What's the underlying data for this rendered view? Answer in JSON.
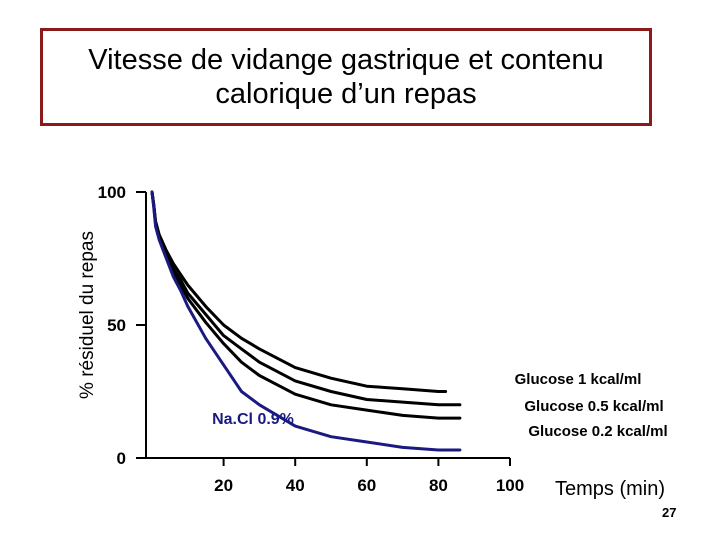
{
  "slide": {
    "title_line1": "Vitesse de vidange gastrique et contenu",
    "title_line2": "calorique d’un repas",
    "page_number": "27"
  },
  "chart_data": {
    "type": "line",
    "ylabel": "% résiduel du repas",
    "xlabel": "Temps (min)",
    "xlim": [
      0,
      100
    ],
    "ylim": [
      0,
      100
    ],
    "x_ticks": [
      "20",
      "40",
      "60",
      "80",
      "100"
    ],
    "y_ticks": [
      "0",
      "50",
      "100"
    ],
    "x_tick_values": [
      20,
      40,
      60,
      80,
      100
    ],
    "y_tick_values": [
      0,
      50,
      100
    ],
    "grid": false,
    "series": [
      {
        "name": "Glucose 1 kcal/ml",
        "color": "#000000",
        "x": [
          0,
          0.5,
          1,
          2,
          4,
          6,
          8,
          10,
          15,
          20,
          25,
          30,
          40,
          50,
          60,
          70,
          80,
          82
        ],
        "values": [
          100,
          95,
          89,
          84,
          78,
          73,
          69,
          65,
          57,
          50,
          45,
          41,
          34,
          30,
          27,
          26,
          25,
          25
        ]
      },
      {
        "name": "Glucose 0.5 kcal/ml",
        "color": "#000000",
        "x": [
          0,
          0.5,
          1,
          2,
          4,
          6,
          8,
          10,
          15,
          20,
          25,
          30,
          40,
          50,
          60,
          70,
          80,
          86
        ],
        "values": [
          100,
          95,
          88,
          83,
          77,
          71,
          67,
          62,
          54,
          46,
          41,
          36,
          29,
          25,
          22,
          21,
          20,
          20
        ]
      },
      {
        "name": "Glucose 0.2 kcal/ml",
        "color": "#000000",
        "x": [
          0,
          0.5,
          1,
          2,
          4,
          6,
          8,
          10,
          15,
          20,
          25,
          30,
          40,
          50,
          60,
          70,
          80,
          86
        ],
        "values": [
          100,
          95,
          88,
          83,
          76,
          70,
          65,
          60,
          51,
          43,
          36,
          31,
          24,
          20,
          18,
          16,
          15,
          15
        ]
      },
      {
        "name": "Na.Cl 0.9%",
        "color": "#1a1a80",
        "x": [
          0,
          0.5,
          1,
          2,
          4,
          6,
          8,
          10,
          15,
          20,
          25,
          30,
          40,
          50,
          60,
          70,
          80,
          86
        ],
        "values": [
          100,
          94,
          87,
          82,
          75,
          68,
          63,
          57,
          45,
          35,
          25,
          20,
          12,
          8,
          6,
          4,
          3,
          3
        ]
      }
    ],
    "labels": {
      "glucose1": "Glucose 1 kcal/ml",
      "glucose05": "Glucose 0.5 kcal/ml",
      "glucose02": "Glucose 0.2 kcal/ml",
      "nacl": "Na.Cl 0.9%"
    }
  }
}
